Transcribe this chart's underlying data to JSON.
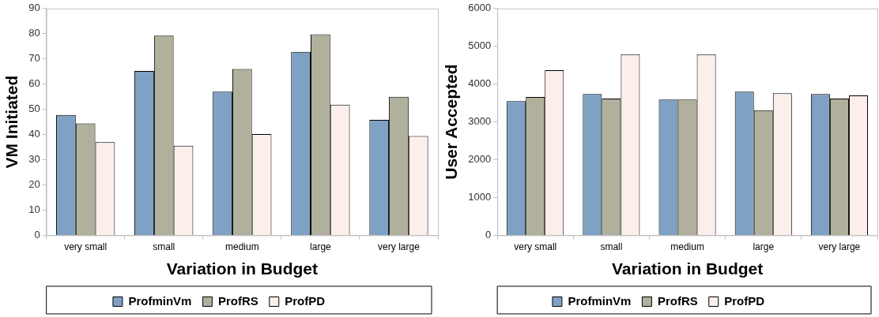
{
  "chart_data": [
    {
      "type": "bar",
      "xlabel": "Variation in Budget",
      "ylabel": "VM Initiated",
      "categories": [
        "very small",
        "small",
        "medium",
        "large",
        "very large"
      ],
      "series": [
        {
          "name": "ProfminVm",
          "color": "#7ea1c4",
          "values": [
            47.8,
            65.2,
            57,
            72.8,
            45.8
          ]
        },
        {
          "name": "ProfRS",
          "color": "#b0b09c",
          "values": [
            44.4,
            79.2,
            66,
            79.8,
            55
          ]
        },
        {
          "name": "ProfPD",
          "color": "#fcefeb",
          "values": [
            37,
            35.6,
            40.2,
            51.8,
            39.4
          ]
        }
      ],
      "ylim": [
        0,
        90
      ],
      "yticks": [
        0,
        10,
        20,
        30,
        40,
        50,
        60,
        70,
        80,
        90
      ],
      "grid": false,
      "legend": "bottom"
    },
    {
      "type": "bar",
      "xlabel": "Variation in Budget",
      "ylabel": "User Accepted",
      "categories": [
        "very small",
        "small",
        "medium",
        "large",
        "very large"
      ],
      "series": [
        {
          "name": "ProfminVm",
          "color": "#7ea1c4",
          "values": [
            3550,
            3740,
            3590,
            3800,
            3740
          ]
        },
        {
          "name": "ProfRS",
          "color": "#b0b09c",
          "values": [
            3660,
            3620,
            3590,
            3310,
            3620
          ]
        },
        {
          "name": "ProfPD",
          "color": "#fcefeb",
          "values": [
            4370,
            4790,
            4790,
            3760,
            3700
          ]
        }
      ],
      "ylim": [
        0,
        6000
      ],
      "yticks": [
        0,
        1000,
        2000,
        3000,
        4000,
        5000,
        6000
      ],
      "grid": false,
      "legend": "bottom"
    }
  ]
}
